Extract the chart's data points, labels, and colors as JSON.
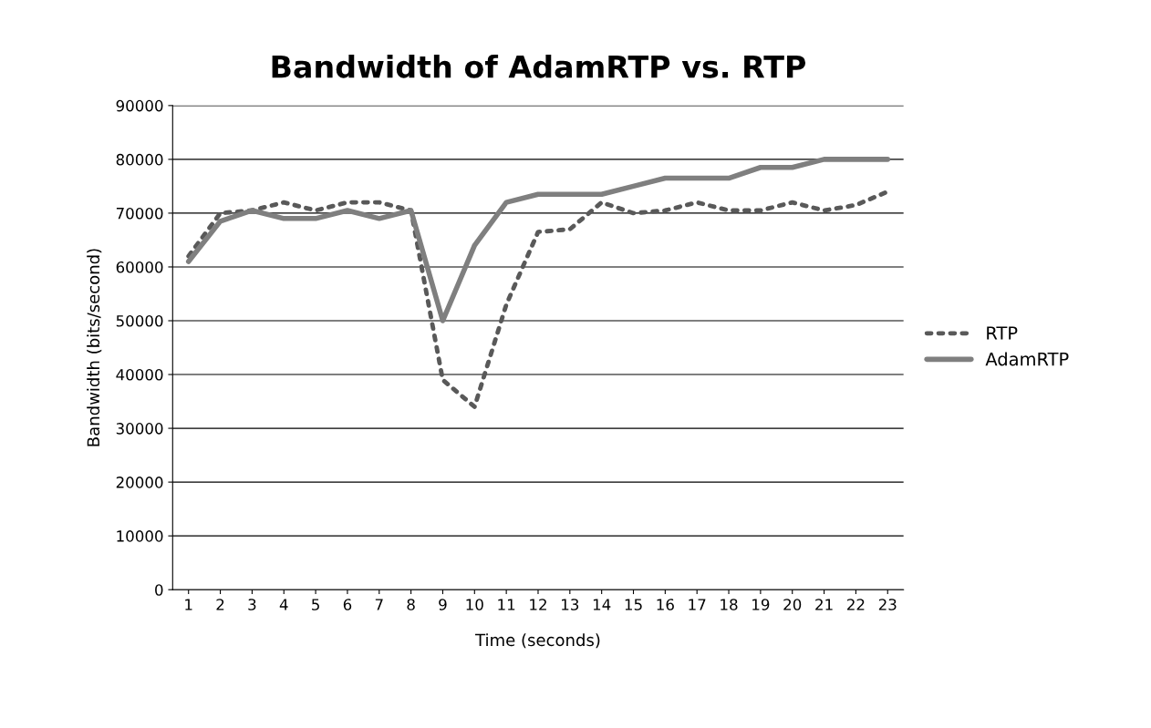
{
  "chart_data": {
    "type": "line",
    "title": "Bandwidth of AdamRTP vs. RTP",
    "xlabel": "Time (seconds)",
    "ylabel": "Bandwidth (bits/second)",
    "categories": [
      "1",
      "2",
      "3",
      "4",
      "5",
      "6",
      "7",
      "8",
      "9",
      "10",
      "11",
      "12",
      "13",
      "14",
      "15",
      "16",
      "17",
      "18",
      "19",
      "20",
      "21",
      "22",
      "23"
    ],
    "series": [
      {
        "name": "RTP",
        "color": "#595959",
        "line_style": "dotted",
        "values": [
          62000,
          70000,
          70500,
          72000,
          70500,
          72000,
          72000,
          70500,
          39000,
          34000,
          53000,
          66500,
          67000,
          72000,
          70000,
          70500,
          72000,
          70500,
          70500,
          72000,
          70500,
          71500,
          74000
        ]
      },
      {
        "name": "AdamRTP",
        "color": "#7f7f7f",
        "line_style": "solid",
        "values": [
          61000,
          68500,
          70500,
          69000,
          69000,
          70500,
          69000,
          70500,
          50000,
          64000,
          72000,
          73500,
          73500,
          73500,
          75000,
          76500,
          76500,
          76500,
          78500,
          78500,
          80000,
          80000,
          80000
        ]
      }
    ],
    "ylim": [
      0,
      90000
    ],
    "yticks": [
      0,
      10000,
      20000,
      30000,
      40000,
      50000,
      60000,
      70000,
      80000,
      90000
    ],
    "grid": "y",
    "legend": "right",
    "marker": "none"
  }
}
